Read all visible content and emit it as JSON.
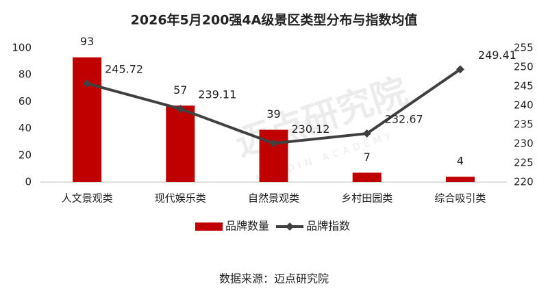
{
  "chart_data": {
    "type": "bar",
    "title": "2026年5月200强4A级景区类型分布与指数均值",
    "categories": [
      "人文景观类",
      "现代娱乐类",
      "自然景观类",
      "乡村田园类",
      "综合吸引类"
    ],
    "series": [
      {
        "name": "品牌数量",
        "type": "bar",
        "color": "#c00000",
        "values": [
          93,
          57,
          39,
          7,
          4
        ]
      },
      {
        "name": "品牌指数",
        "type": "line",
        "axis": "y2",
        "color": "#404040",
        "values": [
          245.72,
          239.11,
          230.12,
          232.67,
          249.41
        ]
      }
    ],
    "ylim": [
      0,
      100
    ],
    "yticks": [
      0,
      20,
      40,
      60,
      80,
      100
    ],
    "y2lim": [
      220,
      255
    ],
    "y2ticks": [
      220,
      225,
      230,
      235,
      240,
      245,
      250,
      255
    ],
    "grid": false,
    "legend": "bottom",
    "watermark": [
      "迈点研究院",
      "MEADIN ACADEMY"
    ],
    "source": "数据来源：迈点研究院"
  }
}
